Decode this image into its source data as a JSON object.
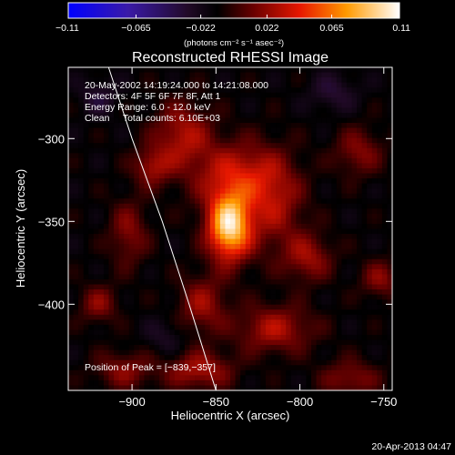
{
  "chart_data": {
    "type": "heatmap",
    "title": "Reconstructed RHESSI Image",
    "xlabel": "Heliocentric X (arcsec)",
    "ylabel": "Heliocentric Y (arcsec)",
    "xlim": [
      -938,
      -745
    ],
    "ylim": [
      -452,
      -257
    ],
    "xticks": [
      -900,
      -850,
      -800,
      -750
    ],
    "yticks": [
      -300,
      -350,
      -400
    ],
    "xtick_labels": [
      "−900",
      "−850",
      "−800",
      "−750"
    ],
    "ytick_labels": [
      "−300",
      "−350",
      "−400"
    ],
    "colorbar": {
      "range": [
        -0.11,
        0.11
      ],
      "ticks": [
        -0.11,
        -0.065,
        -0.022,
        0.022,
        0.065,
        0.11
      ],
      "tick_labels": [
        "−0.11",
        "−0.065",
        "−0.022",
        "0.022",
        "0.065",
        "0.11"
      ],
      "units": "(photons cm⁻² s⁻¹ asec⁻²)"
    },
    "peak": {
      "x": -839,
      "y": -357,
      "value": 0.11
    },
    "info_lines": [
      "20-May-2002 14:19:24.000 to 14:21:08.000",
      "Detectors: 4F 5F 6F 7F 8F, Att 1",
      "Energy Range: 6.0 - 12.0 keV",
      "Clean     Total counts: 6.10E+03"
    ],
    "peak_label": "Position of Peak = [−839,−357]",
    "limb_points": [
      [
        -914,
        -257
      ],
      [
        -900,
        -300
      ],
      [
        -882,
        -350
      ],
      [
        -866,
        -400
      ],
      [
        -850,
        -452
      ]
    ],
    "sources": [
      {
        "x": -842,
        "y": -353,
        "sx": 9,
        "sy": 14,
        "amp": 0.11
      },
      {
        "x": -838,
        "y": -322,
        "sx": 18,
        "sy": 14,
        "amp": 0.045
      },
      {
        "x": -870,
        "y": -298,
        "sx": 12,
        "sy": 14,
        "amp": 0.04
      },
      {
        "x": -888,
        "y": -317,
        "sx": 8,
        "sy": 8,
        "amp": 0.035
      },
      {
        "x": -815,
        "y": -340,
        "sx": 12,
        "sy": 20,
        "amp": 0.035
      },
      {
        "x": -795,
        "y": -372,
        "sx": 10,
        "sy": 10,
        "amp": 0.035
      },
      {
        "x": -815,
        "y": -415,
        "sx": 16,
        "sy": 10,
        "amp": 0.04
      },
      {
        "x": -858,
        "y": -400,
        "sx": 10,
        "sy": 12,
        "amp": 0.035
      },
      {
        "x": -860,
        "y": -440,
        "sx": 14,
        "sy": 8,
        "amp": 0.04
      },
      {
        "x": -902,
        "y": -357,
        "sx": 8,
        "sy": 14,
        "amp": 0.03
      },
      {
        "x": -920,
        "y": -400,
        "sx": 8,
        "sy": 8,
        "amp": 0.03
      },
      {
        "x": -905,
        "y": -440,
        "sx": 12,
        "sy": 8,
        "amp": 0.03
      },
      {
        "x": -765,
        "y": -308,
        "sx": 10,
        "sy": 10,
        "amp": 0.03
      },
      {
        "x": -752,
        "y": -385,
        "sx": 8,
        "sy": 8,
        "amp": 0.03
      },
      {
        "x": -770,
        "y": -445,
        "sx": 12,
        "sy": 8,
        "amp": 0.03
      },
      {
        "x": -920,
        "y": -275,
        "sx": 8,
        "sy": 8,
        "amp": -0.02
      },
      {
        "x": -780,
        "y": -272,
        "sx": 10,
        "sy": 8,
        "amp": -0.02
      },
      {
        "x": -880,
        "y": -420,
        "sx": 8,
        "sy": 8,
        "amp": -0.015
      }
    ]
  },
  "footer": {
    "date": "20-Apr-2013 04:47"
  },
  "colors": {
    "background": "#000000",
    "foreground": "#ffffff",
    "limb": "#ffffff"
  }
}
